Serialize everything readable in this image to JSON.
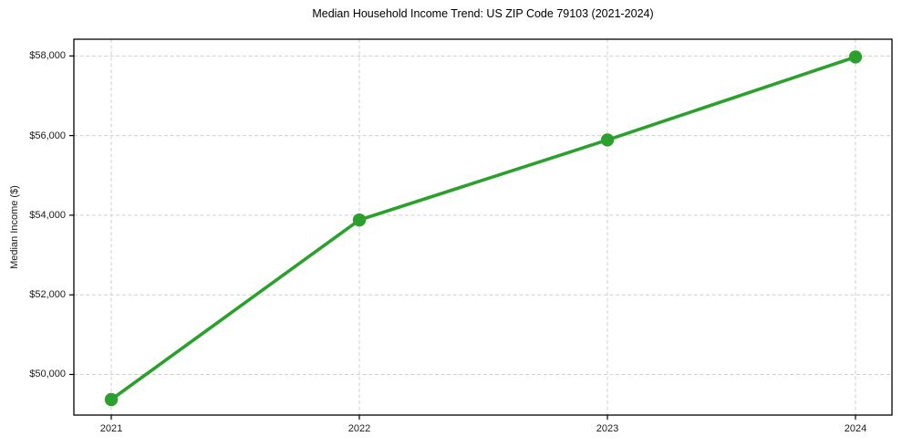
{
  "chart_data": {
    "type": "line",
    "title": "Median Household Income Trend: US ZIP Code 79103 (2021-2024)",
    "xlabel": "",
    "ylabel": "Median Income ($)",
    "categories": [
      "2021",
      "2022",
      "2023",
      "2024"
    ],
    "values": [
      49370,
      53880,
      55890,
      57975
    ],
    "yticks": [
      50000,
      52000,
      54000,
      56000,
      58000
    ],
    "ytick_labels": [
      "$50,000",
      "$52,000",
      "$54,000",
      "$56,000",
      "$58,000"
    ],
    "ylim": [
      48980,
      58420
    ],
    "grid": true,
    "grid_style": "dashed",
    "grid_color": "#cfcfcf",
    "line_color": "#2ca02c",
    "marker": "circle",
    "legend_position": "none"
  }
}
